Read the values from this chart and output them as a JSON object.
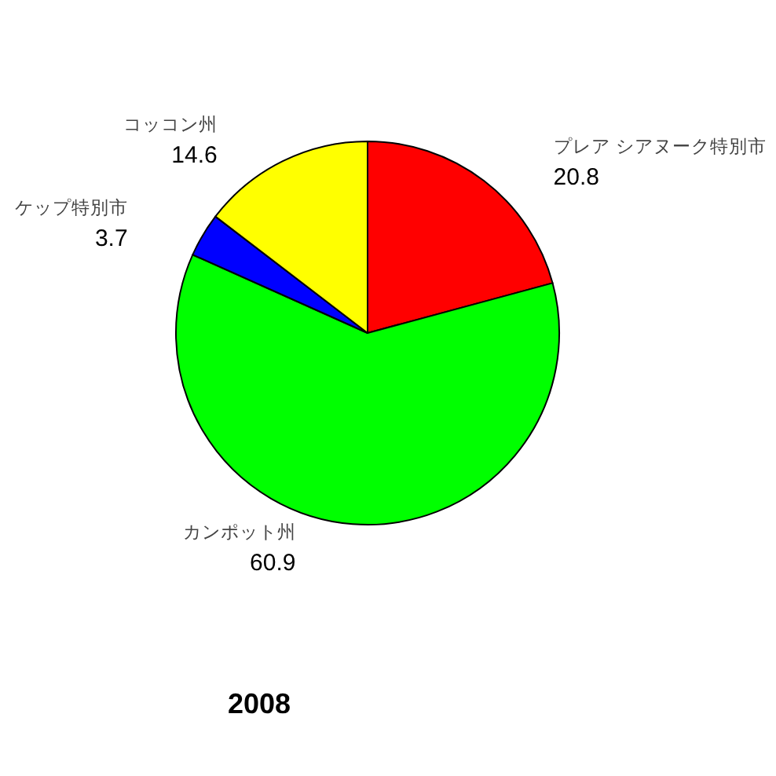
{
  "chart_data": {
    "type": "pie",
    "title": "2008",
    "categories": [
      "プレア シアヌーク特別市",
      "カンポット州",
      "ケップ特別市",
      "コッコン州"
    ],
    "values": [
      20.8,
      60.9,
      3.7,
      14.6
    ],
    "colors": [
      "#ff0000",
      "#00ff00",
      "#0000ff",
      "#ffff00"
    ],
    "data_labels": true
  }
}
